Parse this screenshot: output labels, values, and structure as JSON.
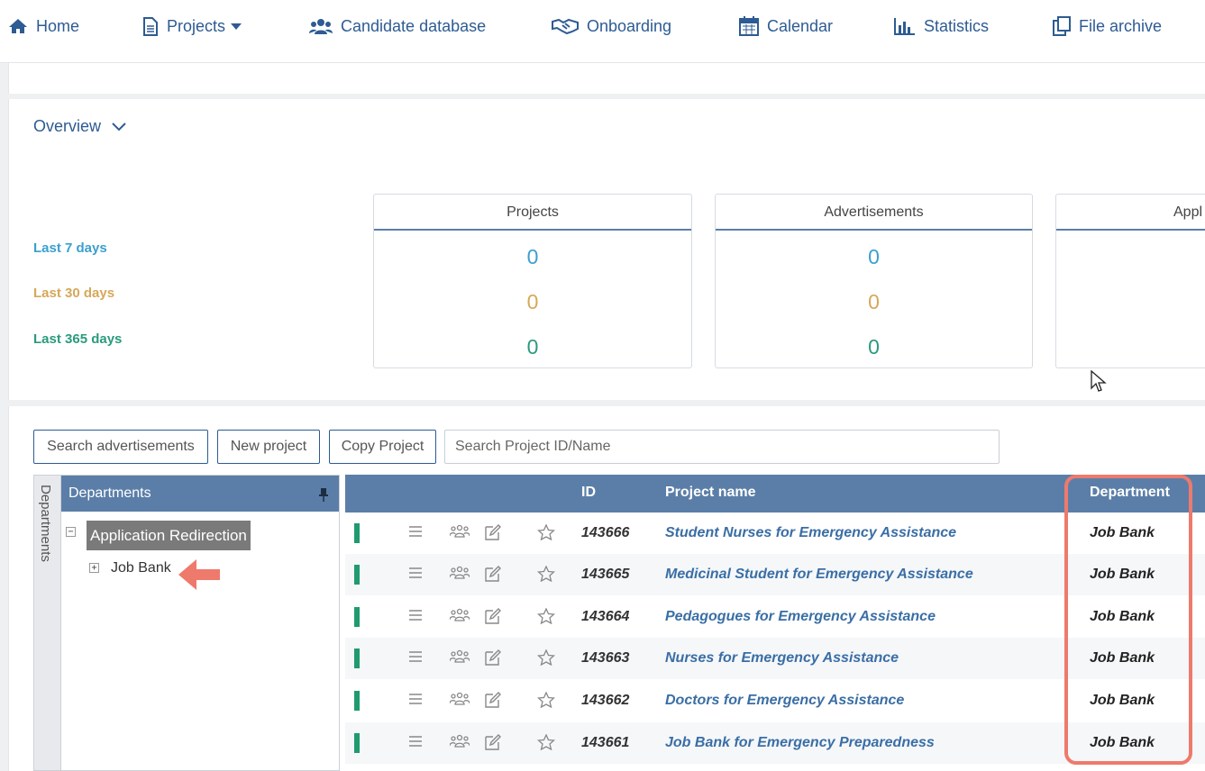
{
  "nav": {
    "home": "Home",
    "projects": "Projects",
    "candidates": "Candidate database",
    "onboarding": "Onboarding",
    "calendar": "Calendar",
    "statistics": "Statistics",
    "archive": "File archive"
  },
  "overview": {
    "toggle_label": "Overview",
    "periods": [
      {
        "label": "Last 7 days",
        "color": "#3b9fcf"
      },
      {
        "label": "Last 30 days",
        "color": "#d6a85a"
      },
      {
        "label": "Last 365 days",
        "color": "#2a9a7e"
      }
    ],
    "cards": [
      {
        "title": "Projects",
        "values": [
          "0",
          "0",
          "0"
        ]
      },
      {
        "title": "Advertisements",
        "values": [
          "0",
          "0",
          "0"
        ]
      },
      {
        "title": "Appl",
        "values": []
      }
    ]
  },
  "toolbar": {
    "search_ads": "Search advertisements",
    "new_project": "New project",
    "copy_project": "Copy Project",
    "search_placeholder": "Search Project ID/Name"
  },
  "departments": {
    "tab_label": "Departments",
    "header": "Departments",
    "root": "Application Redirection",
    "child": "Job Bank"
  },
  "grid": {
    "columns": {
      "id": "ID",
      "name": "Project name",
      "dept": "Department"
    },
    "rows": [
      {
        "id": "143666",
        "name": "Student Nurses for Emergency Assistance",
        "dept": "Job Bank"
      },
      {
        "id": "143665",
        "name": "Medicinal Student for Emergency Assistance",
        "dept": "Job Bank"
      },
      {
        "id": "143664",
        "name": "Pedagogues for Emergency Assistance",
        "dept": "Job Bank"
      },
      {
        "id": "143663",
        "name": "Nurses for Emergency Assistance",
        "dept": "Job Bank"
      },
      {
        "id": "143662",
        "name": "Doctors for Emergency Assistance",
        "dept": "Job Bank"
      },
      {
        "id": "143661",
        "name": "Job Bank for Emergency Preparedness",
        "dept": "Job Bank"
      }
    ]
  },
  "colors": {
    "brand": "#2d5b93",
    "header_bg": "#5b7ea8",
    "status_green": "#1f9b6e",
    "annotation": "#ee7a6c"
  }
}
